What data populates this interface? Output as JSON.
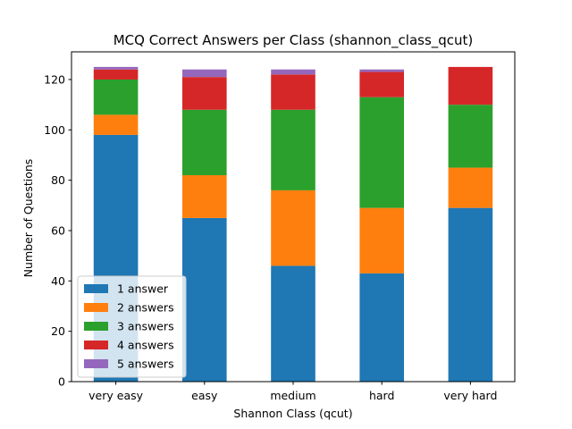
{
  "chart_data": {
    "type": "bar",
    "stacked": true,
    "title": "MCQ Correct Answers per Class (shannon_class_qcut)",
    "xlabel": "Shannon Class (qcut)",
    "ylabel": "Number of Questions",
    "ylim": [
      0,
      131
    ],
    "yticks": [
      0,
      20,
      40,
      60,
      80,
      100,
      120
    ],
    "ytick_labels": [
      "0",
      "20",
      "40",
      "60",
      "80",
      "100",
      "120"
    ],
    "grid": false,
    "legend_position": "lower-left",
    "categories": [
      "very easy",
      "easy",
      "medium",
      "hard",
      "very hard"
    ],
    "series": [
      {
        "name": "1 answer",
        "color": "#1f77b4",
        "values": [
          98,
          65,
          46,
          43,
          69
        ]
      },
      {
        "name": "2 answers",
        "color": "#ff7f0e",
        "values": [
          8,
          17,
          30,
          26,
          16
        ]
      },
      {
        "name": "3 answers",
        "color": "#2ca02c",
        "values": [
          14,
          26,
          32,
          44,
          25
        ]
      },
      {
        "name": "4 answers",
        "color": "#d62728",
        "values": [
          4,
          13,
          14,
          10,
          15
        ]
      },
      {
        "name": "5 answers",
        "color": "#9467bd",
        "values": [
          1,
          3,
          2,
          1,
          0
        ]
      }
    ]
  }
}
